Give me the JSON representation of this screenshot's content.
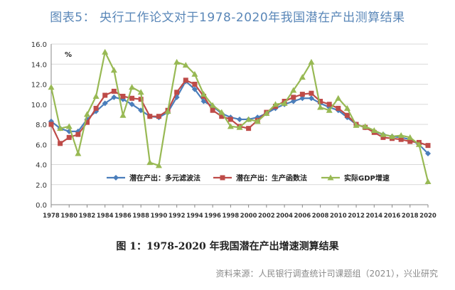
{
  "figure_title": "图表5：  央行工作论文对于1978-2020年我国潜在产出测算结果",
  "caption": "图 1：1978-2020 年我国潜在产出增速测算结果",
  "source": "资料来源：人民银行调查统计司课题组（2021），兴业研究",
  "chart_data": {
    "type": "line",
    "title": "",
    "ylabel": "%",
    "xlabel": "",
    "ylim": [
      0,
      16
    ],
    "ytick_step": 2,
    "yticks": [
      "0.0",
      "2.0",
      "4.0",
      "6.0",
      "8.0",
      "10.0",
      "12.0",
      "14.0",
      "16.0"
    ],
    "grid": "horizontal",
    "legend_placement": "bottom-left",
    "x": [
      1978,
      1979,
      1980,
      1981,
      1982,
      1983,
      1984,
      1985,
      1986,
      1987,
      1988,
      1989,
      1990,
      1991,
      1992,
      1993,
      1994,
      1995,
      1996,
      1997,
      1998,
      1999,
      2000,
      2001,
      2002,
      2003,
      2004,
      2005,
      2006,
      2007,
      2008,
      2009,
      2010,
      2011,
      2012,
      2013,
      2014,
      2015,
      2016,
      2017,
      2018,
      2019,
      2020
    ],
    "xtick_labels": [
      "1978",
      "1980",
      "1982",
      "1984",
      "1986",
      "1988",
      "1990",
      "1992",
      "1994",
      "1996",
      "1998",
      "2000",
      "2002",
      "2004",
      "2006",
      "2008",
      "2010",
      "2012",
      "2014",
      "2016",
      "2018",
      "2020"
    ],
    "series": [
      {
        "name": "潜在产出：多元滤波法",
        "color": "#4a7ebb",
        "marker": "diamond",
        "values": [
          8.3,
          7.6,
          7.3,
          7.3,
          8.5,
          9.3,
          10.1,
          10.7,
          10.5,
          10.0,
          9.4,
          8.8,
          8.7,
          9.2,
          10.7,
          12.3,
          11.5,
          10.3,
          9.8,
          9.1,
          8.7,
          8.5,
          8.5,
          8.7,
          9.1,
          9.6,
          10.0,
          10.3,
          10.6,
          10.6,
          10.1,
          9.7,
          9.4,
          8.7,
          8.0,
          7.7,
          7.3,
          7.0,
          6.8,
          6.7,
          6.5,
          6.0,
          5.1
        ]
      },
      {
        "name": "潜在产出：生产函数法",
        "color": "#be4b48",
        "marker": "square",
        "values": [
          8.0,
          6.1,
          6.7,
          7.0,
          8.2,
          9.6,
          10.9,
          11.3,
          10.8,
          10.6,
          10.5,
          8.8,
          8.8,
          9.4,
          11.2,
          12.4,
          12.0,
          10.8,
          9.4,
          8.8,
          8.5,
          7.8,
          7.6,
          8.4,
          9.2,
          9.8,
          10.3,
          10.7,
          11.0,
          11.1,
          10.3,
          10.0,
          9.6,
          8.9,
          8.0,
          7.7,
          7.2,
          6.7,
          6.6,
          6.5,
          6.3,
          6.2,
          5.9
        ]
      },
      {
        "name": "实际GDP增速",
        "color": "#98b954",
        "marker": "triangle",
        "values": [
          11.7,
          7.6,
          7.8,
          5.1,
          9.0,
          10.8,
          15.2,
          13.4,
          8.9,
          11.7,
          11.2,
          4.2,
          3.9,
          9.3,
          14.2,
          13.9,
          13.0,
          11.0,
          9.9,
          9.2,
          7.8,
          7.7,
          8.5,
          8.3,
          9.1,
          10.0,
          10.1,
          11.4,
          12.7,
          14.2,
          9.7,
          9.4,
          10.6,
          9.6,
          7.9,
          7.8,
          7.4,
          7.0,
          6.8,
          6.9,
          6.7,
          6.0,
          2.3
        ]
      }
    ]
  }
}
